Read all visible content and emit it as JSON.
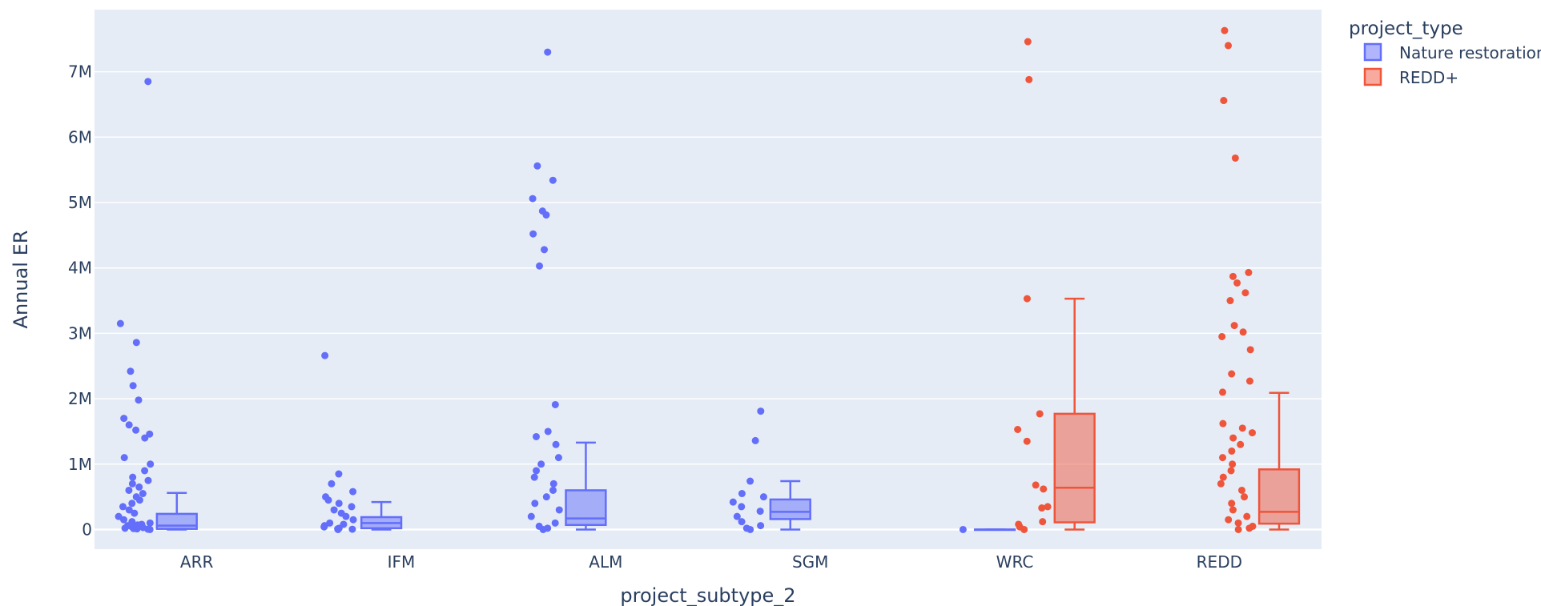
{
  "chart_data": {
    "type": "box",
    "xlabel": "project_subtype_2",
    "ylabel": "Annual ER",
    "categories": [
      "ARR",
      "IFM",
      "ALM",
      "SGM",
      "WRC",
      "REDD"
    ],
    "y_ticks": [
      {
        "value": 0,
        "label": "0"
      },
      {
        "value": 1000000,
        "label": "1M"
      },
      {
        "value": 2000000,
        "label": "2M"
      },
      {
        "value": 3000000,
        "label": "3M"
      },
      {
        "value": 4000000,
        "label": "4M"
      },
      {
        "value": 5000000,
        "label": "5M"
      },
      {
        "value": 6000000,
        "label": "6M"
      },
      {
        "value": 7000000,
        "label": "7M"
      }
    ],
    "ylim": [
      -300000,
      7950000
    ],
    "grid": true,
    "legend": {
      "title": "project_type",
      "placement": "top-right",
      "items": [
        {
          "name": "Nature restoration",
          "color": "#636efa"
        },
        {
          "name": "REDD+",
          "color": "#ef553b"
        }
      ]
    },
    "series": [
      {
        "name": "Nature restoration",
        "color": "#636efa",
        "boxes": [
          {
            "category": "ARR",
            "whisker_low": 0,
            "q1": 10000,
            "median": 60000,
            "q3": 240000,
            "whisker_high": 560000,
            "points": [
              6850000,
              3150000,
              2860000,
              2420000,
              2200000,
              1980000,
              1700000,
              1600000,
              1520000,
              1460000,
              1400000,
              1100000,
              1000000,
              900000,
              800000,
              750000,
              700000,
              650000,
              600000,
              550000,
              500000,
              450000,
              400000,
              350000,
              300000,
              250000,
              200000,
              150000,
              120000,
              100000,
              80000,
              60000,
              40000,
              20000,
              10000,
              0,
              5000,
              15000,
              30000,
              70000
            ]
          },
          {
            "category": "IFM",
            "whisker_low": 0,
            "q1": 20000,
            "median": 100000,
            "q3": 190000,
            "whisker_high": 420000,
            "points": [
              2660000,
              850000,
              700000,
              580000,
              500000,
              450000,
              400000,
              350000,
              300000,
              250000,
              200000,
              150000,
              100000,
              80000,
              60000,
              40000,
              20000,
              10000,
              0,
              5000
            ]
          },
          {
            "category": "ALM",
            "whisker_low": 0,
            "q1": 70000,
            "median": 170000,
            "q3": 600000,
            "whisker_high": 1330000,
            "points": [
              7300000,
              5560000,
              5340000,
              5060000,
              4870000,
              4810000,
              4520000,
              4280000,
              4030000,
              1910000,
              1500000,
              1420000,
              1300000,
              1100000,
              1000000,
              900000,
              800000,
              700000,
              600000,
              500000,
              400000,
              300000,
              200000,
              100000,
              50000,
              20000,
              0
            ]
          },
          {
            "category": "SGM",
            "whisker_low": 0,
            "q1": 160000,
            "median": 270000,
            "q3": 460000,
            "whisker_high": 740000,
            "points": [
              1810000,
              1360000,
              740000,
              550000,
              500000,
              420000,
              350000,
              280000,
              200000,
              120000,
              60000,
              20000,
              0
            ]
          },
          {
            "category": "WRC",
            "whisker_low": 0,
            "q1": 0,
            "median": 0,
            "q3": 0,
            "whisker_high": 0,
            "points": [
              0
            ]
          }
        ]
      },
      {
        "name": "REDD+",
        "color": "#ef553b",
        "boxes": [
          {
            "category": "WRC",
            "whisker_low": 0,
            "q1": 110000,
            "median": 640000,
            "q3": 1770000,
            "whisker_high": 3530000,
            "points": [
              7460000,
              6880000,
              3530000,
              1770000,
              1530000,
              1350000,
              680000,
              620000,
              350000,
              330000,
              120000,
              80000,
              40000,
              0
            ]
          },
          {
            "category": "REDD",
            "whisker_low": 0,
            "q1": 90000,
            "median": 270000,
            "q3": 920000,
            "whisker_high": 2090000,
            "points": [
              7630000,
              7400000,
              6560000,
              5680000,
              3930000,
              3870000,
              3770000,
              3620000,
              3500000,
              3120000,
              3020000,
              2950000,
              2750000,
              2380000,
              2270000,
              2100000,
              1620000,
              1550000,
              1480000,
              1400000,
              1300000,
              1200000,
              1100000,
              1000000,
              900000,
              800000,
              700000,
              600000,
              500000,
              400000,
              300000,
              200000,
              150000,
              100000,
              50000,
              20000,
              0
            ]
          }
        ]
      }
    ]
  }
}
